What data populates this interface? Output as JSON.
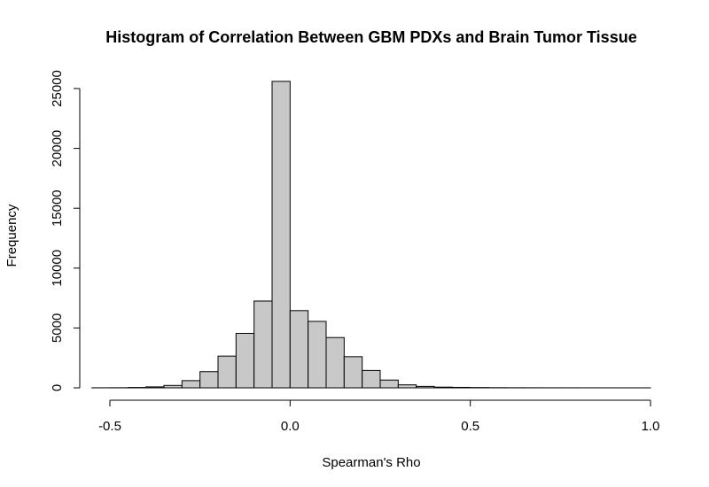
{
  "chart_data": {
    "type": "bar",
    "title": "Histogram of Correlation Between GBM PDXs and Brain Tumor Tissue",
    "xlabel": "Spearman's Rho",
    "ylabel": "Frequency",
    "xlim": [
      -0.5,
      1.0
    ],
    "ylim": [
      0,
      25000
    ],
    "x_ticks": [
      -0.5,
      0.0,
      0.5,
      1.0
    ],
    "x_tick_labels": [
      "-0.5",
      "0.0",
      "0.5",
      "1.0"
    ],
    "y_ticks": [
      0,
      5000,
      10000,
      15000,
      20000,
      25000
    ],
    "y_tick_labels": [
      "0",
      "5000",
      "10000",
      "15000",
      "20000",
      "25000"
    ],
    "grid": false,
    "bin_width": 0.05,
    "bins": [
      {
        "start": -0.55,
        "end": -0.5,
        "count": 5
      },
      {
        "start": -0.5,
        "end": -0.45,
        "count": 10
      },
      {
        "start": -0.45,
        "end": -0.4,
        "count": 30
      },
      {
        "start": -0.4,
        "end": -0.35,
        "count": 80
      },
      {
        "start": -0.35,
        "end": -0.3,
        "count": 200
      },
      {
        "start": -0.3,
        "end": -0.25,
        "count": 600
      },
      {
        "start": -0.25,
        "end": -0.2,
        "count": 1350
      },
      {
        "start": -0.2,
        "end": -0.15,
        "count": 2650
      },
      {
        "start": -0.15,
        "end": -0.1,
        "count": 4550
      },
      {
        "start": -0.1,
        "end": -0.05,
        "count": 7250
      },
      {
        "start": -0.05,
        "end": 0.0,
        "count": 25600
      },
      {
        "start": 0.0,
        "end": 0.05,
        "count": 6450
      },
      {
        "start": 0.05,
        "end": 0.1,
        "count": 5550
      },
      {
        "start": 0.1,
        "end": 0.15,
        "count": 4200
      },
      {
        "start": 0.15,
        "end": 0.2,
        "count": 2600
      },
      {
        "start": 0.2,
        "end": 0.25,
        "count": 1450
      },
      {
        "start": 0.25,
        "end": 0.3,
        "count": 650
      },
      {
        "start": 0.3,
        "end": 0.35,
        "count": 250
      },
      {
        "start": 0.35,
        "end": 0.4,
        "count": 120
      },
      {
        "start": 0.4,
        "end": 0.45,
        "count": 60
      },
      {
        "start": 0.45,
        "end": 0.5,
        "count": 40
      },
      {
        "start": 0.5,
        "end": 0.55,
        "count": 25
      },
      {
        "start": 0.55,
        "end": 0.6,
        "count": 15
      },
      {
        "start": 0.6,
        "end": 0.65,
        "count": 10
      },
      {
        "start": 0.65,
        "end": 0.7,
        "count": 8
      },
      {
        "start": 0.7,
        "end": 0.75,
        "count": 6
      },
      {
        "start": 0.75,
        "end": 0.8,
        "count": 5
      },
      {
        "start": 0.8,
        "end": 0.85,
        "count": 4
      },
      {
        "start": 0.85,
        "end": 0.9,
        "count": 3
      },
      {
        "start": 0.9,
        "end": 0.95,
        "count": 2
      },
      {
        "start": 0.95,
        "end": 1.0,
        "count": 2
      }
    ],
    "colors": {
      "bar_fill": "#c8c8c8",
      "bar_stroke": "#000000"
    }
  }
}
